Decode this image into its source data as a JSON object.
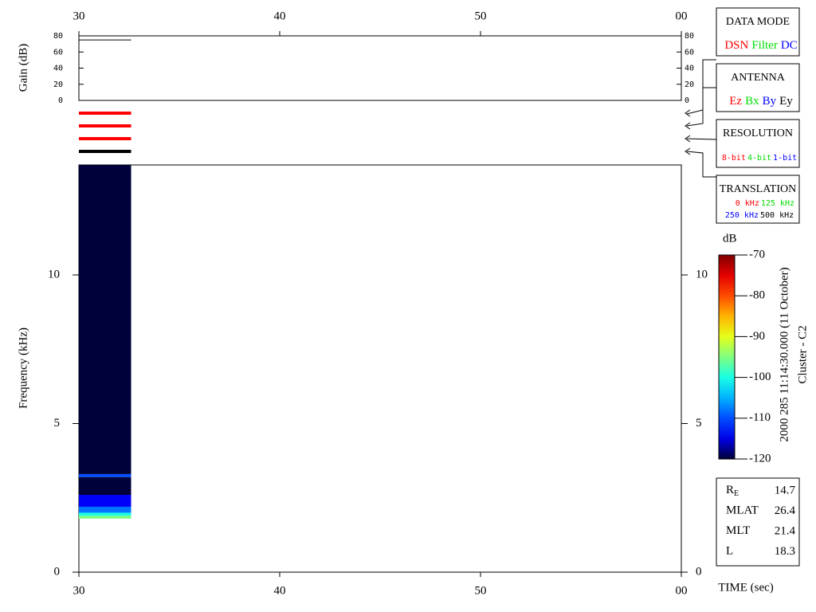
{
  "chart_data": [
    {
      "type": "line",
      "ylabel": "Gain (dB)",
      "xlim": [
        30,
        60
      ],
      "xticks": [
        30,
        40,
        50,
        {
          "value": 60,
          "label": "00"
        }
      ],
      "ylim": [
        0,
        80
      ],
      "yticks": [
        0,
        20,
        40,
        60,
        80
      ],
      "series": [
        {
          "color": "#000000",
          "x": [
            30,
            32.6
          ],
          "values": [
            75,
            75
          ]
        }
      ]
    },
    {
      "type": "mode_bars",
      "x": [
        30,
        32.6
      ],
      "colors": [
        "#ff0000",
        "#ff0000",
        "#ff0000",
        "#000000"
      ]
    },
    {
      "type": "heatmap",
      "ylabel": "Frequency (kHz)",
      "xlabel": "TIME (sec)",
      "xlim": [
        30,
        60
      ],
      "xticks": [
        30,
        40,
        50,
        {
          "value": 60,
          "label": "00"
        }
      ],
      "ylim": [
        0,
        13.7
      ],
      "yticks": [
        0,
        5,
        10
      ],
      "x_edges": [
        30,
        32.6
      ],
      "y_edges": [
        1.8,
        1.9,
        2.0,
        2.2,
        2.6,
        3.2,
        3.3,
        13.7
      ],
      "values": [
        -95,
        -100,
        -108,
        -114,
        -118,
        -110,
        -119
      ],
      "colorbar": {
        "label": "dB",
        "clim": [
          -120,
          -70
        ],
        "ticks": [
          -120,
          -110,
          -100,
          -90,
          -80,
          -70
        ]
      }
    }
  ],
  "side_panels": [
    {
      "title": "DATA MODE",
      "items": [
        {
          "text": "DSN",
          "color": "#ff0000"
        },
        {
          "text": "Filter",
          "color": "#00dd00"
        },
        {
          "text": "DC",
          "color": "#0000ff"
        }
      ]
    },
    {
      "title": "ANTENNA",
      "items": [
        {
          "text": "Ez",
          "color": "#ff0000"
        },
        {
          "text": "Bx",
          "color": "#00dd00"
        },
        {
          "text": "By",
          "color": "#0000ff"
        },
        {
          "text": "Ey",
          "color": "#000000"
        }
      ]
    },
    {
      "title": "RESOLUTION",
      "items": [
        {
          "text": "8-bit",
          "color": "#ff0000"
        },
        {
          "text": "4-bit",
          "color": "#00dd00"
        },
        {
          "text": "1-bit",
          "color": "#0000ff"
        }
      ]
    },
    {
      "title": "TRANSLATION",
      "items": [
        {
          "text": "0 kHz",
          "color": "#ff0000"
        },
        {
          "text": "125 kHz",
          "color": "#00dd00"
        },
        {
          "text": "250 kHz",
          "color": "#0000ff"
        },
        {
          "text": "500 kHz",
          "color": "#000000"
        }
      ]
    }
  ],
  "timestamp": "2000 285 11:14:30.000 (11 October)",
  "spacecraft": "Cluster - C2",
  "ephemeris": [
    {
      "label": "R",
      "subscript": "E",
      "value": 14.7
    },
    {
      "label": "MLAT",
      "value": 26.4
    },
    {
      "label": "MLT",
      "value": 21.4
    },
    {
      "label": "L",
      "value": 18.3
    }
  ]
}
